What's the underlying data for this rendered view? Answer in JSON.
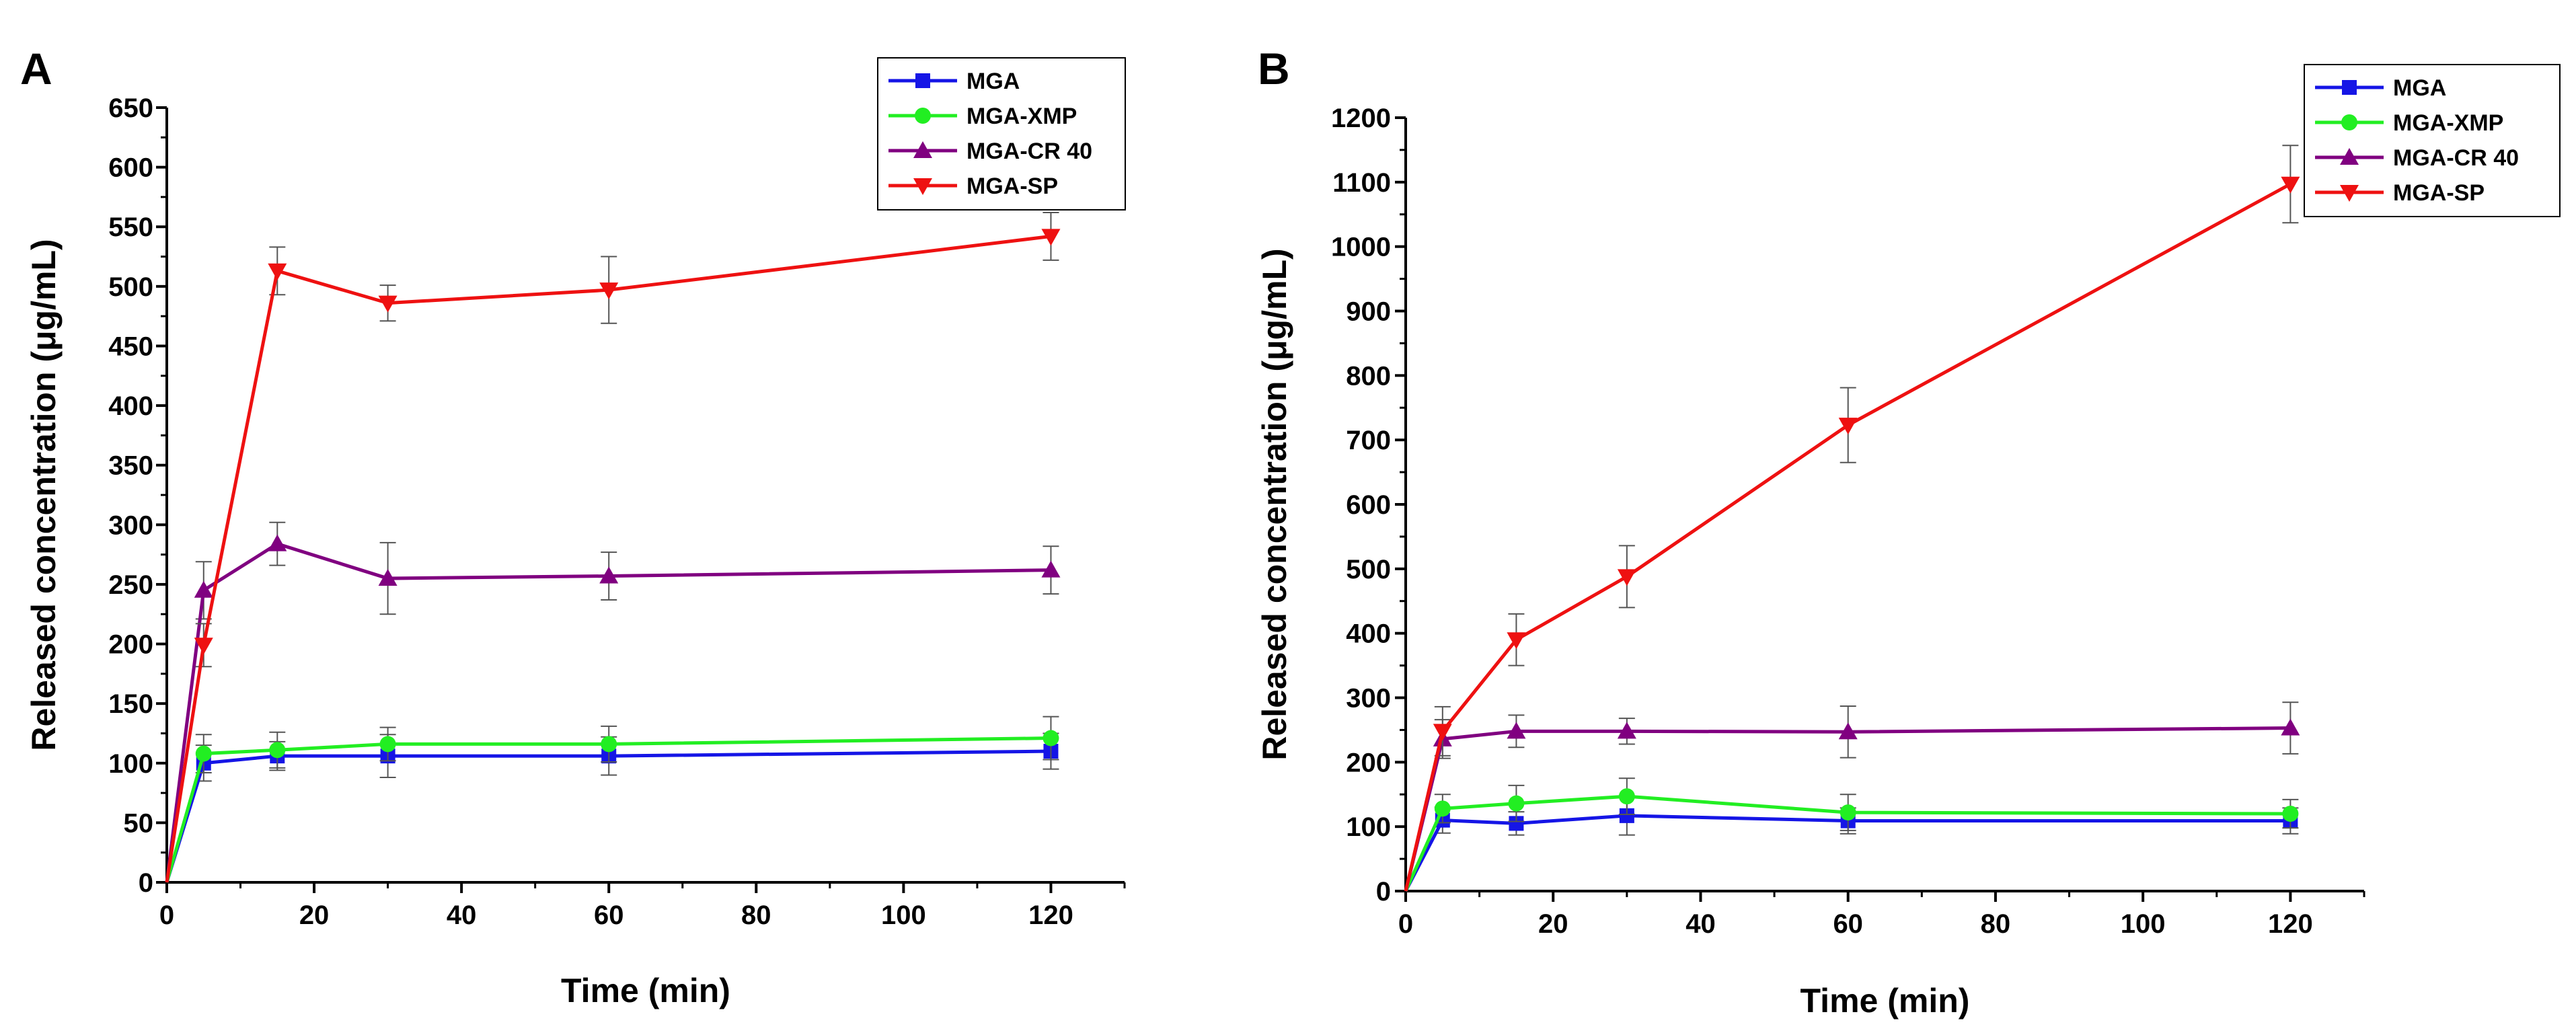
{
  "chart_data": [
    {
      "panel": "A",
      "type": "line",
      "xlabel": "Time (min)",
      "ylabel": "Released concentration (μg/mL)",
      "xlim": [
        0,
        130
      ],
      "ylim": [
        0,
        650
      ],
      "xticks": [
        0,
        20,
        40,
        60,
        80,
        100,
        120
      ],
      "yticks": [
        0,
        50,
        100,
        150,
        200,
        250,
        300,
        350,
        400,
        450,
        500,
        550,
        600,
        650
      ],
      "legend_position": "top-right",
      "x": [
        0,
        5,
        15,
        30,
        60,
        120
      ],
      "series": [
        {
          "name": "MGA",
          "color": "#1515e6",
          "marker": "square",
          "values": [
            0,
            100,
            106,
            106,
            106,
            110
          ],
          "errors": [
            0,
            15,
            12,
            18,
            16,
            15
          ]
        },
        {
          "name": "MGA-XMP",
          "color": "#22ee22",
          "marker": "circle",
          "values": [
            0,
            108,
            111,
            116,
            116,
            121
          ],
          "errors": [
            0,
            16,
            15,
            14,
            15,
            18
          ]
        },
        {
          "name": "MGA-CR 40",
          "color": "#800080",
          "marker": "triangle-up",
          "values": [
            0,
            245,
            284,
            255,
            257,
            262
          ],
          "errors": [
            0,
            24,
            18,
            30,
            20,
            20
          ]
        },
        {
          "name": "MGA-SP",
          "color": "#ee1111",
          "marker": "triangle-down",
          "values": [
            0,
            199,
            513,
            486,
            497,
            542
          ],
          "errors": [
            0,
            18,
            20,
            15,
            28,
            20
          ]
        }
      ]
    },
    {
      "panel": "B",
      "type": "line",
      "xlabel": "Time (min)",
      "ylabel": "Released concentration (μg/mL)",
      "xlim": [
        0,
        130
      ],
      "ylim": [
        0,
        1200
      ],
      "xticks": [
        0,
        20,
        40,
        60,
        80,
        100,
        120
      ],
      "yticks": [
        0,
        100,
        200,
        300,
        400,
        500,
        600,
        700,
        800,
        900,
        1000,
        1100,
        1200
      ],
      "legend_position": "top-right",
      "x": [
        0,
        5,
        15,
        30,
        60,
        120
      ],
      "series": [
        {
          "name": "MGA",
          "color": "#1515e6",
          "marker": "square",
          "values": [
            0,
            110,
            105,
            117,
            109,
            109
          ],
          "errors": [
            0,
            20,
            18,
            30,
            20,
            20
          ]
        },
        {
          "name": "MGA-XMP",
          "color": "#22ee22",
          "marker": "circle",
          "values": [
            0,
            128,
            136,
            147,
            122,
            120
          ],
          "errors": [
            0,
            22,
            28,
            28,
            28,
            22
          ]
        },
        {
          "name": "MGA-CR 40",
          "color": "#800080",
          "marker": "triangle-up",
          "values": [
            0,
            236,
            248,
            248,
            247,
            253
          ],
          "errors": [
            0,
            30,
            25,
            20,
            40,
            40
          ]
        },
        {
          "name": "MGA-SP",
          "color": "#ee1111",
          "marker": "triangle-down",
          "values": [
            0,
            248,
            390,
            488,
            723,
            1097
          ],
          "errors": [
            0,
            38,
            40,
            48,
            58,
            60
          ]
        }
      ]
    }
  ]
}
